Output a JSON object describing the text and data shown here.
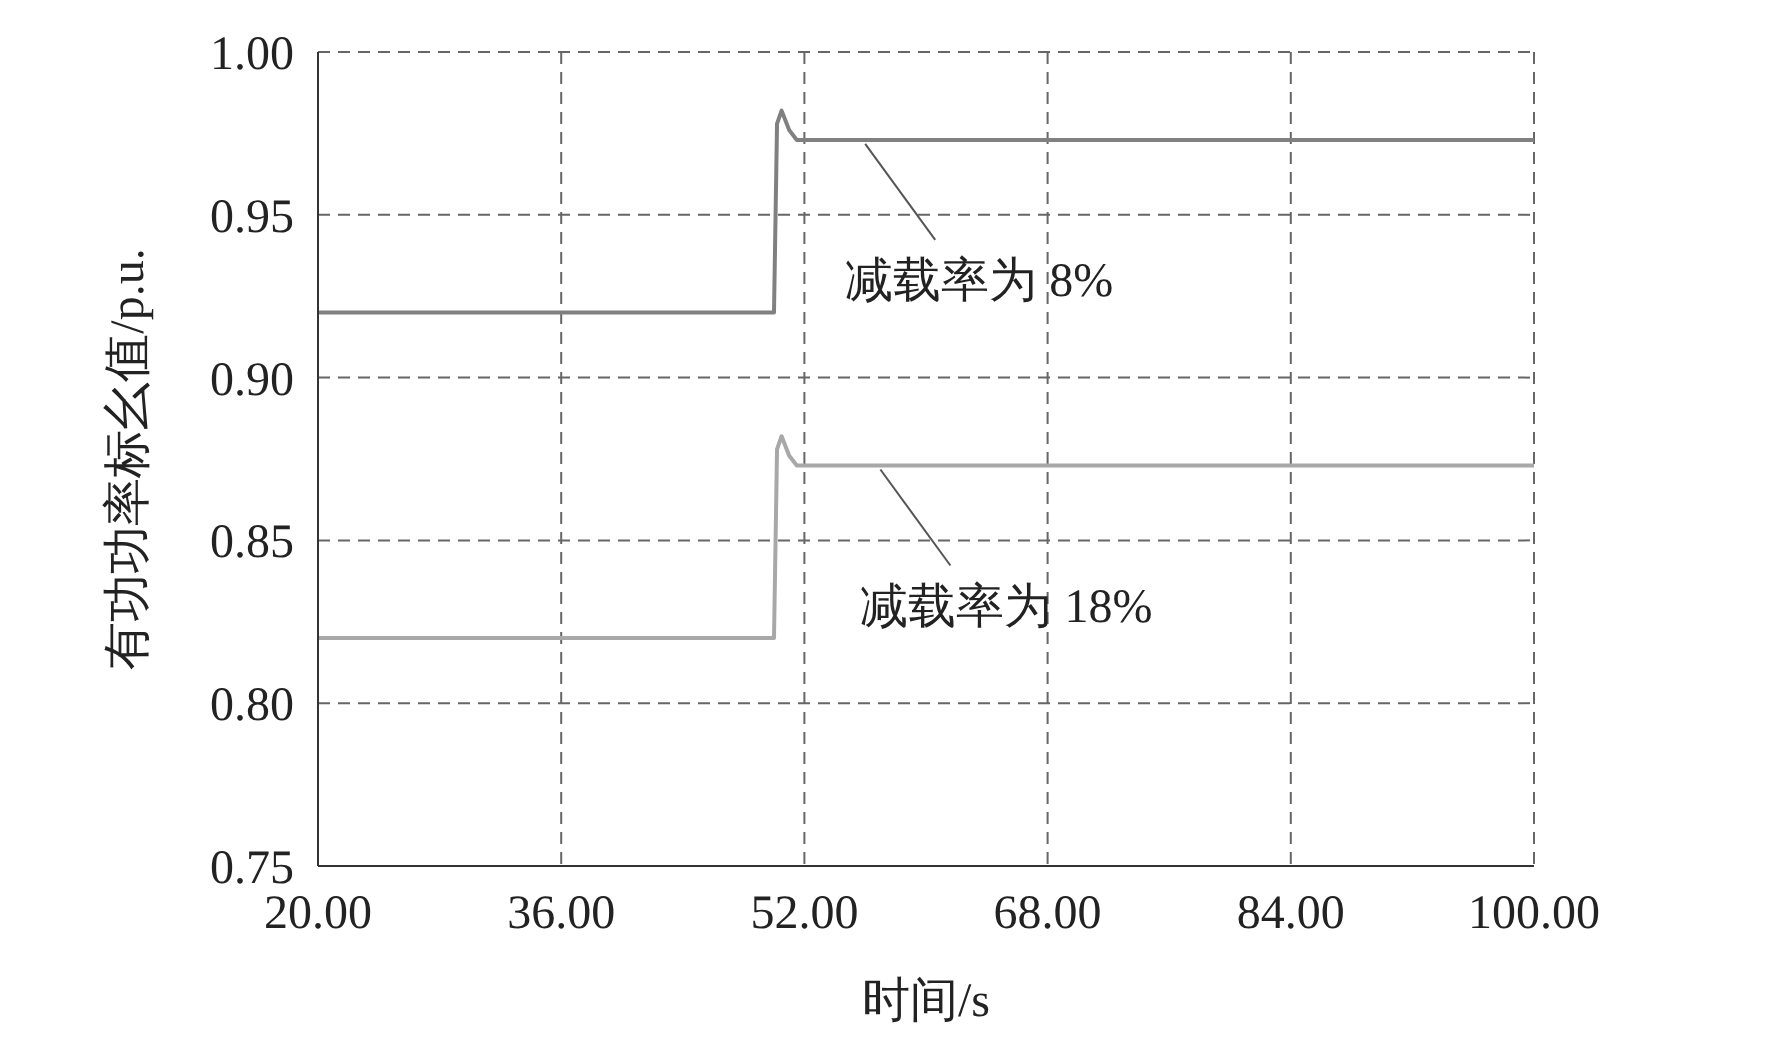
{
  "chart_data": {
    "type": "line",
    "xlabel": "时间/s",
    "ylabel": "有功功率标幺值/p.u.",
    "xlim": [
      20,
      100
    ],
    "xticks": [
      {
        "value": 20,
        "label": "20.00"
      },
      {
        "value": 36,
        "label": "36.00"
      },
      {
        "value": 52,
        "label": "52.00"
      },
      {
        "value": 68,
        "label": "68.00"
      },
      {
        "value": 84,
        "label": "84.00"
      },
      {
        "value": 100,
        "label": "100.00"
      }
    ],
    "ylim": [
      0.75,
      1
    ],
    "yticks": [
      {
        "value": 0.75,
        "label": "0.75"
      },
      {
        "value": 0.8,
        "label": "0.80"
      },
      {
        "value": 0.85,
        "label": "0.85"
      },
      {
        "value": 0.9,
        "label": "0.90"
      },
      {
        "value": 0.95,
        "label": "0.95"
      },
      {
        "value": 1,
        "label": "1.00"
      }
    ],
    "grid": true,
    "marker": "none",
    "line_style": "solid",
    "series": [
      {
        "color": "#808080",
        "x": [
          20,
          50,
          50.2,
          50.5,
          51,
          51.5,
          100
        ],
        "values": [
          0.92,
          0.92,
          0.978,
          0.982,
          0.976,
          0.973,
          0.973
        ]
      },
      {
        "color": "#a8a8a8",
        "x": [
          20,
          50,
          50.2,
          50.5,
          51,
          51.5,
          100
        ],
        "values": [
          0.82,
          0.82,
          0.878,
          0.882,
          0.876,
          0.873,
          0.873
        ]
      }
    ],
    "annotations": [
      {
        "text": "减载率为 8%",
        "x": 56,
        "y": 0.973
      },
      {
        "text": "减载率为 18%",
        "x": 57,
        "y": 0.873
      }
    ]
  }
}
